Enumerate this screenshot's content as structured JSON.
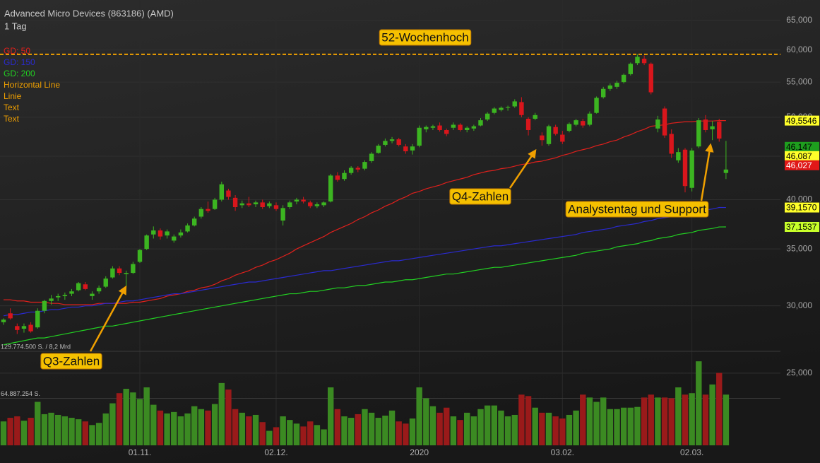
{
  "chart_data": {
    "type": "candlestick",
    "title": "Advanced Micro Devices (863186) (AMD)",
    "subtitle": "1 Tag",
    "categories": [
      null,
      null,
      null,
      null,
      null,
      null,
      null,
      null,
      null,
      null,
      null,
      null,
      null,
      null,
      null,
      null,
      null,
      null,
      null,
      null,
      "01.11.",
      null,
      null,
      null,
      null,
      null,
      null,
      null,
      null,
      null,
      null,
      null,
      null,
      null,
      null,
      null,
      null,
      null,
      null,
      null,
      "02.12.",
      null,
      null,
      null,
      null,
      null,
      null,
      null,
      null,
      null,
      null,
      null,
      null,
      null,
      null,
      null,
      null,
      null,
      null,
      null,
      null,
      "2020",
      null,
      null,
      null,
      null,
      null,
      null,
      null,
      null,
      null,
      null,
      null,
      null,
      null,
      null,
      null,
      null,
      null,
      null,
      null,
      null,
      "03.02.",
      null,
      null,
      null,
      null,
      null,
      null,
      null,
      null,
      null,
      null,
      null,
      null,
      null,
      null,
      null,
      null,
      null,
      null,
      "02.03.",
      null,
      null,
      null,
      null,
      null
    ],
    "open": [
      28.7,
      29.4,
      28.4,
      28.2,
      28.5,
      28.3,
      29.6,
      30.4,
      30.7,
      30.8,
      31.0,
      31.3,
      31.8,
      30.8,
      31.2,
      31.6,
      32.4,
      33.2,
      32.7,
      32.8,
      33.8,
      35.0,
      36.4,
      36.8,
      36.3,
      35.8,
      36.3,
      36.7,
      37.3,
      38.2,
      39.0,
      39.0,
      40.0,
      41.0,
      40.2,
      39.4,
      39.6,
      39.5,
      39.7,
      39.3,
      39.4,
      37.8,
      39.2,
      39.8,
      40.0,
      39.7,
      39.3,
      39.4,
      39.8,
      42.7,
      42.3,
      43.0,
      43.6,
      43.5,
      44.4,
      45.4,
      46.4,
      46.9,
      47.1,
      46.2,
      45.7,
      46.3,
      48.4,
      48.6,
      48.9,
      48.3,
      48.6,
      49.0,
      48.3,
      48.5,
      48.9,
      49.7,
      50.6,
      51.0,
      51.3,
      51.5,
      52.1,
      49.8,
      49.8,
      47.6,
      46.5,
      48.7,
      47.7,
      48.2,
      49.0,
      49.5,
      49.0,
      50.6,
      52.8,
      54.0,
      54.3,
      55.0,
      56.2,
      57.9,
      58.6,
      57.8,
      48.5,
      51.2,
      47.8,
      44.5,
      45.8,
      41.3,
      46.2,
      49.7,
      48.4,
      49.4,
      43.0
    ],
    "high": [
      29.0,
      29.8,
      28.6,
      28.6,
      28.7,
      29.8,
      30.5,
      30.9,
      31.0,
      31.1,
      31.4,
      32.0,
      32.0,
      31.2,
      31.7,
      32.5,
      33.4,
      33.4,
      33.0,
      33.8,
      35.0,
      36.4,
      37.2,
      37.0,
      36.9,
      36.4,
      36.9,
      37.5,
      38.2,
      39.2,
      39.8,
      40.2,
      42.0,
      41.2,
      40.5,
      39.9,
      40.3,
      39.9,
      40.0,
      39.8,
      39.7,
      39.4,
      39.9,
      40.2,
      40.3,
      39.9,
      39.7,
      39.8,
      42.9,
      43.1,
      43.3,
      43.8,
      43.8,
      44.5,
      45.5,
      46.5,
      47.2,
      47.4,
      47.3,
      46.5,
      46.5,
      48.9,
      48.9,
      49.0,
      49.3,
      48.5,
      49.3,
      49.2,
      48.8,
      49.0,
      49.9,
      50.7,
      51.4,
      51.5,
      51.6,
      52.5,
      52.8,
      50.0,
      50.6,
      48.0,
      49.0,
      49.0,
      48.2,
      49.3,
      49.8,
      49.8,
      50.8,
      52.9,
      54.3,
      54.8,
      55.2,
      56.3,
      58.0,
      59.3,
      59.1,
      58.0,
      50.2,
      51.5,
      48.4,
      46.0,
      46.0,
      46.0,
      49.9,
      50.3,
      49.5,
      49.8,
      46.9
    ],
    "low": [
      28.5,
      28.9,
      27.8,
      27.9,
      27.9,
      28.2,
      29.4,
      30.1,
      30.4,
      30.5,
      30.8,
      31.2,
      31.3,
      30.5,
      31.0,
      31.5,
      32.3,
      32.6,
      31.6,
      32.7,
      33.7,
      34.9,
      36.0,
      35.9,
      36.0,
      35.6,
      36.1,
      36.6,
      37.2,
      38.0,
      38.6,
      38.9,
      39.8,
      40.0,
      38.8,
      39.1,
      39.2,
      39.2,
      39.0,
      39.1,
      38.8,
      37.3,
      39.0,
      39.5,
      39.6,
      39.1,
      39.1,
      39.2,
      39.7,
      42.0,
      42.1,
      42.8,
      43.1,
      43.3,
      44.2,
      45.3,
      46.2,
      46.6,
      46.2,
      45.3,
      45.2,
      46.1,
      48.0,
      48.3,
      48.1,
      47.5,
      48.3,
      48.1,
      48.0,
      48.2,
      48.8,
      49.5,
      50.4,
      50.8,
      50.9,
      51.3,
      50.0,
      47.6,
      49.6,
      46.3,
      46.3,
      47.6,
      46.5,
      48.0,
      48.8,
      48.6,
      48.8,
      50.5,
      52.6,
      53.7,
      54.0,
      54.8,
      56.0,
      57.6,
      57.6,
      53.2,
      48.0,
      47.3,
      44.8,
      44.2,
      40.8,
      40.9,
      46.0,
      48.0,
      47.0,
      46.8,
      42.3
    ],
    "close": [
      28.9,
      29.0,
      28.1,
      28.4,
      28.0,
      29.6,
      30.4,
      30.6,
      30.8,
      30.9,
      31.2,
      31.9,
      31.4,
      31.0,
      31.5,
      32.3,
      33.2,
      32.8,
      32.8,
      33.6,
      34.9,
      36.3,
      36.8,
      36.2,
      36.7,
      36.2,
      36.6,
      37.3,
      38.0,
      39.0,
      38.8,
      40.0,
      41.7,
      40.3,
      39.2,
      39.6,
      39.4,
      39.7,
      39.2,
      39.6,
      39.0,
      39.1,
      39.7,
      40.0,
      39.8,
      39.3,
      39.5,
      39.7,
      42.7,
      42.2,
      43.0,
      43.6,
      43.4,
      44.3,
      45.3,
      46.3,
      46.9,
      47.1,
      46.4,
      45.6,
      46.2,
      48.6,
      48.7,
      48.8,
      48.3,
      47.8,
      49.0,
      48.3,
      48.6,
      48.8,
      49.6,
      50.5,
      51.2,
      51.3,
      51.4,
      52.2,
      50.3,
      48.3,
      50.3,
      47.0,
      48.8,
      47.8,
      46.8,
      49.1,
      49.6,
      48.9,
      50.5,
      52.7,
      54.0,
      54.5,
      54.9,
      56.1,
      57.8,
      58.9,
      57.9,
      53.5,
      49.7,
      47.6,
      45.3,
      45.5,
      41.5,
      45.7,
      49.6,
      48.3,
      48.8,
      47.2,
      43.4
    ],
    "up_color": "#3cb521",
    "down_color": "#d9161c",
    "series": [
      {
        "name": "GD: 50",
        "color": "#e0201c",
        "values": [
          30.5,
          30.5,
          30.4,
          30.4,
          30.3,
          30.3,
          30.3,
          30.2,
          30.2,
          30.1,
          30.1,
          30.1,
          30.1,
          30.1,
          30.2,
          30.2,
          30.2,
          30.2,
          30.2,
          30.3,
          30.3,
          30.4,
          30.5,
          30.6,
          30.8,
          30.9,
          31.0,
          31.2,
          31.3,
          31.5,
          31.6,
          31.8,
          32.1,
          32.3,
          32.6,
          32.8,
          33.0,
          33.3,
          33.5,
          33.8,
          34.0,
          34.3,
          34.6,
          35.0,
          35.3,
          35.6,
          35.9,
          36.2,
          36.6,
          36.9,
          37.2,
          37.5,
          37.9,
          38.2,
          38.6,
          38.9,
          39.3,
          39.6,
          40.0,
          40.3,
          40.7,
          40.9,
          41.2,
          41.4,
          41.6,
          41.9,
          42.1,
          42.3,
          42.5,
          42.8,
          43.0,
          43.2,
          43.3,
          43.5,
          43.6,
          43.8,
          44.0,
          44.1,
          44.3,
          44.4,
          44.6,
          44.8,
          45.1,
          45.3,
          45.6,
          45.8,
          46.0,
          46.3,
          46.5,
          46.8,
          47.0,
          47.4,
          47.7,
          48.1,
          48.4,
          48.8,
          48.9,
          49.0,
          49.2,
          49.3,
          49.4,
          49.4,
          49.5,
          49.5,
          49.5,
          49.55,
          49.5546
        ]
      },
      {
        "name": "GD: 150",
        "color": "#2a2ad0",
        "values": [
          29.2,
          29.3,
          29.3,
          29.4,
          29.5,
          29.5,
          29.6,
          29.7,
          29.7,
          29.8,
          29.9,
          29.9,
          30.0,
          30.0,
          30.1,
          30.2,
          30.2,
          30.3,
          30.4,
          30.4,
          30.5,
          30.6,
          30.7,
          30.8,
          30.9,
          31.0,
          31.0,
          31.1,
          31.2,
          31.3,
          31.4,
          31.5,
          31.6,
          31.7,
          31.8,
          31.9,
          32.0,
          32.0,
          32.1,
          32.2,
          32.3,
          32.4,
          32.5,
          32.6,
          32.7,
          32.8,
          32.9,
          33.0,
          33.0,
          33.1,
          33.2,
          33.3,
          33.4,
          33.5,
          33.6,
          33.7,
          33.8,
          33.9,
          33.9,
          34.0,
          34.1,
          34.2,
          34.3,
          34.4,
          34.5,
          34.6,
          34.7,
          34.8,
          34.9,
          35.0,
          35.1,
          35.2,
          35.3,
          35.3,
          35.4,
          35.5,
          35.6,
          35.7,
          35.8,
          35.9,
          36.0,
          36.1,
          36.2,
          36.3,
          36.4,
          36.6,
          36.7,
          36.8,
          36.9,
          37.0,
          37.2,
          37.3,
          37.4,
          37.5,
          37.7,
          37.8,
          38.0,
          38.1,
          38.2,
          38.4,
          38.5,
          38.6,
          38.8,
          38.9,
          39.0,
          39.16,
          39.157
        ]
      },
      {
        "name": "GD: 200",
        "color": "#22d022",
        "values": [
          27.0,
          27.1,
          27.2,
          27.3,
          27.4,
          27.5,
          27.5,
          27.6,
          27.7,
          27.8,
          27.9,
          28.0,
          28.1,
          28.2,
          28.3,
          28.4,
          28.4,
          28.5,
          28.6,
          28.7,
          28.8,
          28.9,
          29.0,
          29.1,
          29.2,
          29.3,
          29.4,
          29.5,
          29.6,
          29.7,
          29.8,
          29.9,
          30.0,
          30.1,
          30.2,
          30.3,
          30.4,
          30.5,
          30.6,
          30.7,
          30.8,
          30.9,
          31.0,
          31.0,
          31.1,
          31.2,
          31.2,
          31.3,
          31.4,
          31.5,
          31.5,
          31.6,
          31.7,
          31.7,
          31.8,
          31.9,
          32.0,
          32.0,
          32.1,
          32.2,
          32.2,
          32.3,
          32.4,
          32.5,
          32.6,
          32.7,
          32.7,
          32.8,
          32.9,
          33.0,
          33.1,
          33.2,
          33.3,
          33.3,
          33.4,
          33.5,
          33.6,
          33.7,
          33.8,
          33.9,
          34.0,
          34.1,
          34.2,
          34.3,
          34.4,
          34.6,
          34.7,
          34.8,
          34.9,
          35.0,
          35.2,
          35.3,
          35.4,
          35.5,
          35.7,
          35.8,
          36.0,
          36.1,
          36.2,
          36.4,
          36.5,
          36.6,
          36.8,
          36.9,
          37.0,
          37.15,
          37.1537
        ]
      }
    ],
    "legend": [
      {
        "name": "Horizontal Line",
        "color": "#f0a000"
      },
      {
        "name": "Linie",
        "color": "#f0a000"
      },
      {
        "name": "Text",
        "color": "#f0a000"
      },
      {
        "name": "Text",
        "color": "#f0a000"
      }
    ],
    "horizontal_line": {
      "value": 59.3,
      "color": "#f0a000"
    },
    "annotations": [
      {
        "text": "52-Wochenhoch"
      },
      {
        "text": "Q3-Zahlen"
      },
      {
        "text": "Q4-Zahlen"
      },
      {
        "text": "Analystentag und Support"
      }
    ],
    "right_labels": [
      {
        "value": 49.5546,
        "label": "49,5546",
        "color": "#ffff2a"
      },
      {
        "value": 46.147,
        "label": "46,147",
        "color": "#1e9e1e"
      },
      {
        "value": 46.087,
        "label": "46,087",
        "color": "#ffff2a"
      },
      {
        "value": 46.027,
        "label": "46,027",
        "color": "#e01818"
      },
      {
        "value": 39.157,
        "label": "39,1570",
        "color": "#ffff2a"
      },
      {
        "value": 37.1537,
        "label": "37,1537",
        "color": "#c8ff2a"
      }
    ],
    "log_scale": true,
    "grid": true,
    "ylim": [
      20.56,
      68.7
    ],
    "yticks": [
      {
        "value": 25,
        "label": "25,000"
      },
      {
        "value": 30,
        "label": "30,000"
      },
      {
        "value": 35,
        "label": "35,000"
      },
      {
        "value": 40,
        "label": "40,000"
      },
      {
        "value": 45,
        "label": "45,000"
      },
      {
        "value": 50,
        "label": "50,000"
      },
      {
        "value": 55,
        "label": "55,000"
      },
      {
        "value": 60,
        "label": "60,000"
      },
      {
        "value": 65,
        "label": "65,000"
      }
    ],
    "volume": {
      "up_color": "#3b8a22",
      "down_color": "#9a1a1a",
      "values": [
        33000000,
        38000000,
        40000000,
        34000000,
        38000000,
        60000000,
        43000000,
        45000000,
        42000000,
        40000000,
        38000000,
        36000000,
        33000000,
        28000000,
        31000000,
        44000000,
        58000000,
        72000000,
        78000000,
        73000000,
        64000000,
        80000000,
        56000000,
        48000000,
        44000000,
        46000000,
        40000000,
        44000000,
        54000000,
        50000000,
        48000000,
        57000000,
        86000000,
        77000000,
        50000000,
        45000000,
        40000000,
        42000000,
        32000000,
        20000000,
        25000000,
        40000000,
        35000000,
        30000000,
        26000000,
        33000000,
        28000000,
        22000000,
        80000000,
        50000000,
        40000000,
        38000000,
        43000000,
        50000000,
        45000000,
        38000000,
        41000000,
        48000000,
        33000000,
        30000000,
        37000000,
        80000000,
        65000000,
        54000000,
        45000000,
        52000000,
        40000000,
        35000000,
        45000000,
        40000000,
        50000000,
        55000000,
        55000000,
        48000000,
        40000000,
        42000000,
        70000000,
        68000000,
        52000000,
        45000000,
        45000000,
        40000000,
        37000000,
        42000000,
        48000000,
        70000000,
        66000000,
        60000000,
        66000000,
        50000000,
        50000000,
        52000000,
        52000000,
        53000000,
        66000000,
        70000000,
        66000000,
        66000000,
        65000000,
        80000000,
        70000000,
        72000000,
        116000000,
        70000000,
        84000000,
        100000000,
        70000000
      ],
      "ylim": [
        0,
        129774500
      ],
      "yticks": [
        {
          "value": 64887254,
          "label": "64.887.254 S."
        },
        {
          "value": 129774500,
          "label": "129.774.500 S. / 8,2 Mrd"
        }
      ]
    }
  }
}
